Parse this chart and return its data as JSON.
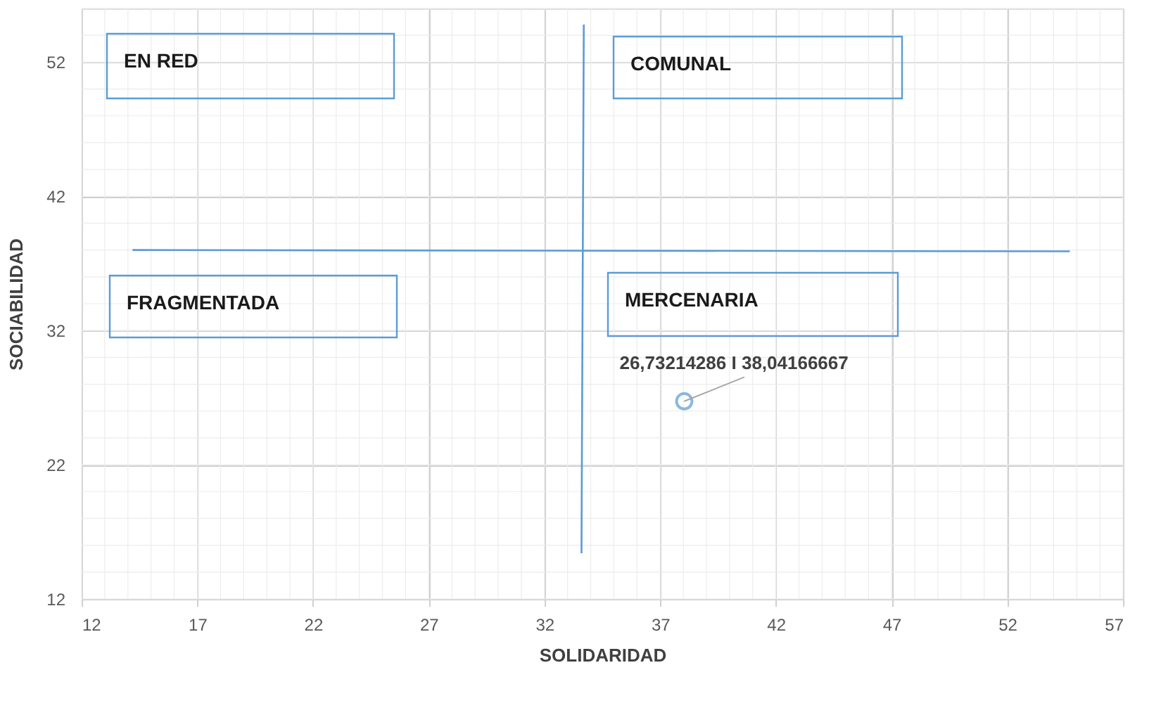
{
  "chart_data": {
    "type": "scatter",
    "xlabel": "SOLIDARIDAD",
    "ylabel": "SOCIABILIDAD",
    "xlim": [
      12,
      57
    ],
    "xticks": [
      12,
      17,
      22,
      27,
      32,
      37,
      42,
      47,
      52,
      57
    ],
    "ylim": [
      12,
      56
    ],
    "yticks": [
      12,
      22,
      32,
      42,
      52
    ],
    "grid": true,
    "annotations": [
      "EN RED",
      "COMUNAL",
      "FRAGMENTADA",
      "MERCENARIA"
    ],
    "series": [
      {
        "type": "line",
        "color": "#5b9bd5",
        "x": [
          14.2,
          54.7
        ],
        "values": [
          38.0,
          37.9
        ],
        "marker": "none"
      },
      {
        "type": "line",
        "color": "#5b9bd5",
        "x": [
          33.7,
          33.6
        ],
        "values": [
          54.8,
          15.4
        ],
        "marker": "none"
      },
      {
        "color": "#5b9bd5",
        "x": [
          38.04
        ],
        "values": [
          26.73
        ],
        "value_labels": [
          "26,73214286 I 38,04166667"
        ],
        "marker": "circle"
      }
    ]
  }
}
